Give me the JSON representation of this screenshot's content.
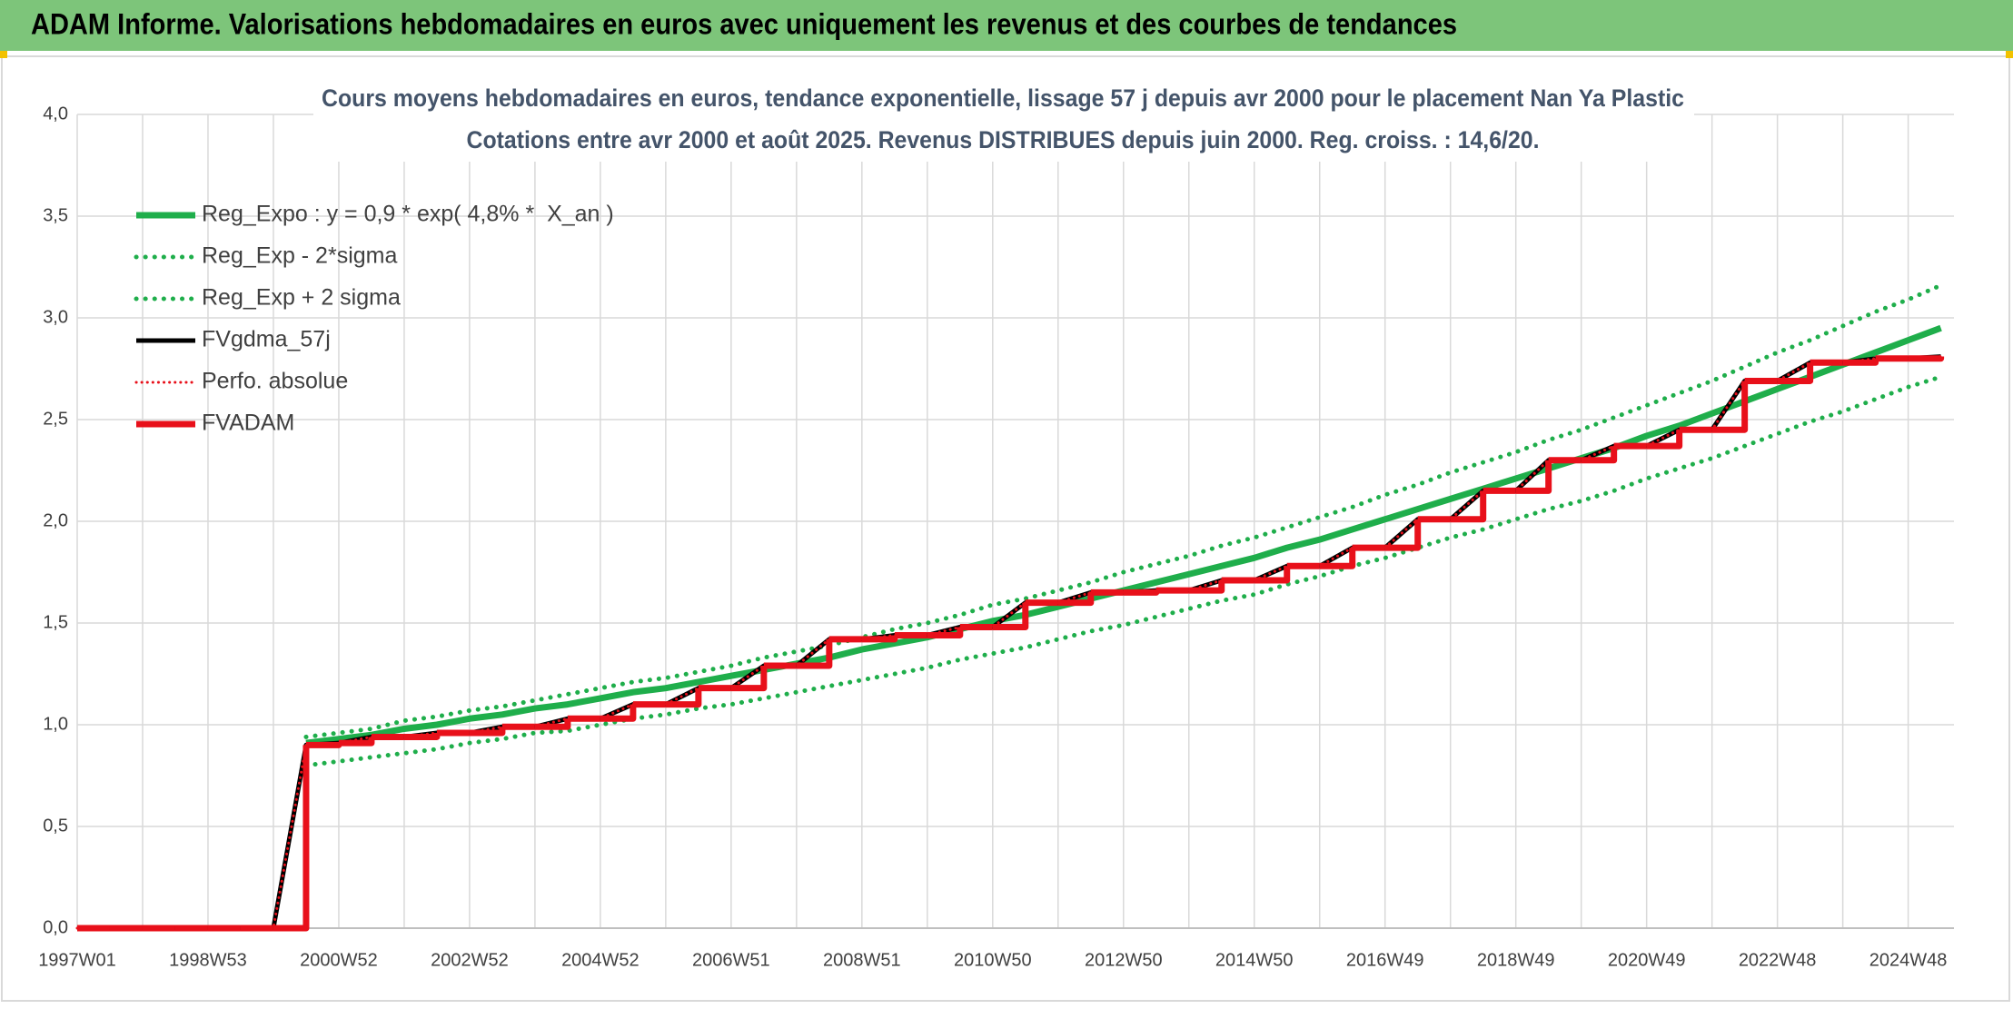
{
  "chart_data": {
    "type": "line",
    "header": "ADAM Informe. Valorisations hebdomadaires en euros avec uniquement les revenus et des courbes de tendances",
    "title": "Cours moyens hebdomadaires en euros, tendance exponentielle, lissage 57 j depuis avr 2000 pour le placement Nan Ya Plastic",
    "subtitle": "Cotations entre avr 2000 et août 2025. Revenus DISTRIBUES depuis juin 2000. Reg. croiss. : 14,6/20.",
    "categories": [
      "1997W01",
      null,
      null,
      null,
      "1998W53",
      null,
      null,
      null,
      "2000W52",
      null,
      null,
      null,
      "2002W52",
      null,
      null,
      null,
      "2004W52",
      null,
      null,
      null,
      "2006W51",
      null,
      null,
      null,
      "2008W51",
      null,
      null,
      null,
      "2010W50",
      null,
      null,
      null,
      "2012W50",
      null,
      null,
      null,
      "2014W50",
      null,
      null,
      null,
      "2016W49",
      null,
      null,
      null,
      "2018W49",
      null,
      null,
      null,
      "2020W49",
      null,
      null,
      null,
      "2022W48",
      null,
      null,
      null,
      "2024W48",
      null
    ],
    "ylim": [
      0,
      4
    ],
    "yticks": [
      {
        "value": 0,
        "label": "0,0"
      },
      {
        "value": 0.5,
        "label": "0,5"
      },
      {
        "value": 1,
        "label": "1,0"
      },
      {
        "value": 1.5,
        "label": "1,5"
      },
      {
        "value": 2,
        "label": "2,0"
      },
      {
        "value": 2.5,
        "label": "2,5"
      },
      {
        "value": 3,
        "label": "3,0"
      },
      {
        "value": 3.5,
        "label": "3,5"
      },
      {
        "value": 4,
        "label": "4,0"
      }
    ],
    "grid": true,
    "legend": "top-left",
    "series": [
      {
        "name": "Reg_Expo : y = 0,9 * exp( 4,8% *  X_an )",
        "color": "#1fae4b",
        "dash": "solid",
        "values": [
          null,
          null,
          null,
          null,
          null,
          null,
          null,
          0.91,
          0.93,
          0.95,
          0.98,
          1.0,
          1.03,
          1.05,
          1.08,
          1.1,
          1.13,
          1.16,
          1.18,
          1.21,
          1.24,
          1.27,
          1.3,
          1.33,
          1.37,
          1.4,
          1.43,
          1.47,
          1.51,
          1.54,
          1.58,
          1.62,
          1.66,
          1.7,
          1.74,
          1.78,
          1.82,
          1.87,
          1.91,
          1.96,
          2.01,
          2.06,
          2.11,
          2.16,
          2.21,
          2.26,
          2.31,
          2.36,
          2.42,
          2.47,
          2.53,
          2.59,
          2.65,
          2.71,
          2.77,
          2.83,
          2.89,
          2.95
        ]
      },
      {
        "name": "Reg_Exp - 2*sigma",
        "color": "#1fae4b",
        "dash": "dotted",
        "values": [
          null,
          null,
          null,
          null,
          null,
          null,
          null,
          0.8,
          0.82,
          0.84,
          0.86,
          0.88,
          0.91,
          0.93,
          0.96,
          0.97,
          1.0,
          1.03,
          1.05,
          1.08,
          1.1,
          1.13,
          1.16,
          1.19,
          1.22,
          1.25,
          1.28,
          1.32,
          1.35,
          1.38,
          1.42,
          1.46,
          1.49,
          1.53,
          1.57,
          1.61,
          1.64,
          1.69,
          1.73,
          1.78,
          1.82,
          1.87,
          1.92,
          1.96,
          2.01,
          2.06,
          2.1,
          2.15,
          2.21,
          2.26,
          2.31,
          2.37,
          2.43,
          2.49,
          2.54,
          2.6,
          2.66,
          2.71
        ]
      },
      {
        "name": "Reg_Exp + 2 sigma",
        "color": "#1fae4b",
        "dash": "dotted",
        "values": [
          null,
          null,
          null,
          null,
          null,
          null,
          null,
          0.94,
          0.96,
          0.98,
          1.02,
          1.04,
          1.07,
          1.09,
          1.12,
          1.15,
          1.18,
          1.21,
          1.23,
          1.26,
          1.29,
          1.33,
          1.36,
          1.39,
          1.43,
          1.47,
          1.5,
          1.54,
          1.59,
          1.62,
          1.66,
          1.7,
          1.75,
          1.79,
          1.83,
          1.88,
          1.92,
          1.97,
          2.02,
          2.07,
          2.13,
          2.18,
          2.24,
          2.29,
          2.34,
          2.4,
          2.45,
          2.51,
          2.57,
          2.63,
          2.69,
          2.76,
          2.83,
          2.89,
          2.96,
          3.03,
          3.09,
          3.16
        ]
      },
      {
        "name": "FVgdma_57j",
        "color": "#000000",
        "dash": "solid",
        "values": [
          0,
          0,
          0,
          0,
          0,
          0,
          0,
          0.9,
          0.91,
          0.94,
          0.94,
          0.96,
          0.96,
          0.99,
          0.99,
          1.03,
          1.03,
          1.1,
          1.1,
          1.18,
          1.18,
          1.29,
          1.29,
          1.42,
          1.42,
          1.44,
          1.44,
          1.48,
          1.48,
          1.6,
          1.6,
          1.65,
          1.65,
          1.66,
          1.66,
          1.71,
          1.71,
          1.78,
          1.78,
          1.87,
          1.87,
          2.01,
          2.01,
          2.15,
          2.15,
          2.3,
          2.3,
          2.37,
          2.37,
          2.45,
          2.45,
          2.69,
          2.69,
          2.78,
          2.78,
          2.8,
          2.8,
          2.81
        ]
      },
      {
        "name": "Perfo. absolue",
        "color": "#e8101a",
        "dash": "dotted",
        "values": [
          0,
          0,
          0,
          0,
          0,
          0,
          0,
          0.9,
          0.91,
          0.94,
          0.94,
          0.96,
          0.96,
          0.99,
          0.99,
          1.03,
          1.03,
          1.1,
          1.1,
          1.18,
          1.18,
          1.29,
          1.29,
          1.42,
          1.42,
          1.44,
          1.44,
          1.48,
          1.48,
          1.6,
          1.6,
          1.65,
          1.65,
          1.66,
          1.66,
          1.71,
          1.71,
          1.78,
          1.78,
          1.87,
          1.87,
          2.01,
          2.01,
          2.15,
          2.15,
          2.3,
          2.3,
          2.37,
          2.37,
          2.45,
          2.45,
          2.69,
          2.69,
          2.78,
          2.78,
          2.8,
          2.8,
          2.81
        ]
      },
      {
        "name": "FVADAM",
        "color": "#e8101a",
        "dash": "solid",
        "step": true,
        "values": [
          0,
          0,
          0,
          0,
          0,
          0,
          0,
          0.9,
          0.91,
          0.94,
          0.94,
          0.96,
          0.96,
          0.99,
          0.99,
          1.03,
          1.03,
          1.1,
          1.1,
          1.18,
          1.18,
          1.29,
          1.29,
          1.42,
          1.42,
          1.44,
          1.44,
          1.48,
          1.48,
          1.6,
          1.6,
          1.65,
          1.65,
          1.66,
          1.66,
          1.71,
          1.71,
          1.78,
          1.78,
          1.87,
          1.87,
          2.01,
          2.01,
          2.15,
          2.15,
          2.3,
          2.3,
          2.37,
          2.37,
          2.45,
          2.45,
          2.69,
          2.69,
          2.78,
          2.78,
          2.8,
          2.8,
          2.81
        ]
      }
    ]
  }
}
